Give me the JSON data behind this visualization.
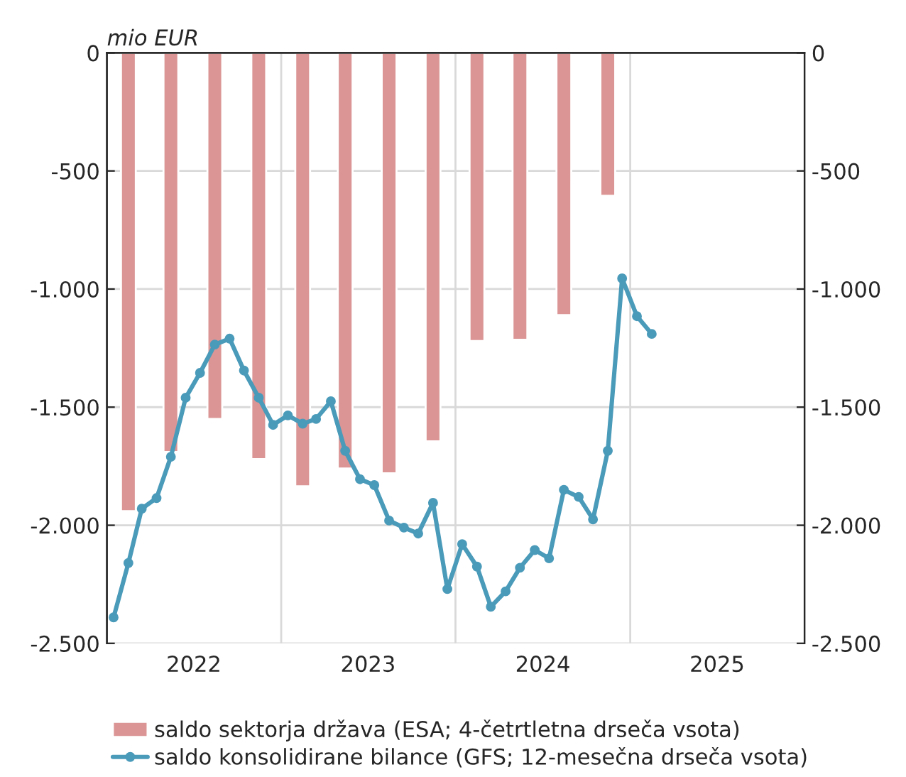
{
  "chart_data": {
    "type": "bar",
    "ylabel": "mio EUR",
    "series": [
      {
        "name": "saldo sektorja država (ESA; 4-četrtletna drseča vsota)",
        "color": "#db9595",
        "x": [
          "2022-02-15",
          "2022-05-15",
          "2022-08-15",
          "2022-11-15",
          "2023-02-15",
          "2023-05-15",
          "2023-08-15",
          "2023-11-15",
          "2024-02-15",
          "2024-05-15",
          "2024-08-15",
          "2024-11-15"
        ],
        "values": [
          -1940,
          -1690,
          -1550,
          -1720,
          -1835,
          -1760,
          -1780,
          -1645,
          -1220,
          -1215,
          -1110,
          -605
        ]
      },
      {
        "name": "saldo konsolidirane bilance (GFS; 12-mesečna drseča vsota)",
        "type": "line",
        "color": "#4a9aba",
        "marker": "circle",
        "line_style": "solid",
        "x": [
          "2022-01-15",
          "2022-02-15",
          "2022-03-15",
          "2022-04-15",
          "2022-05-15",
          "2022-06-15",
          "2022-07-15",
          "2022-08-15",
          "2022-09-15",
          "2022-10-15",
          "2022-11-15",
          "2022-12-15",
          "2023-01-15",
          "2023-02-15",
          "2023-03-15",
          "2023-04-15",
          "2023-05-15",
          "2023-06-15",
          "2023-07-15",
          "2023-08-15",
          "2023-09-15",
          "2023-10-15",
          "2023-11-15",
          "2023-12-15",
          "2024-01-15",
          "2024-02-15",
          "2024-03-15",
          "2024-04-15",
          "2024-05-15",
          "2024-06-15",
          "2024-07-15",
          "2024-08-15",
          "2024-09-15",
          "2024-10-15",
          "2024-11-15",
          "2024-12-15",
          "2025-01-15",
          "2025-02-15"
        ],
        "values": [
          -2390,
          -2160,
          -1930,
          -1885,
          -1710,
          -1460,
          -1355,
          -1235,
          -1210,
          -1345,
          -1460,
          -1575,
          -1535,
          -1570,
          -1550,
          -1475,
          -1685,
          -1805,
          -1830,
          -1980,
          -2010,
          -2035,
          -1905,
          -2270,
          -2080,
          -2175,
          -2345,
          -2280,
          -2180,
          -2105,
          -2140,
          -1850,
          -1880,
          -1975,
          -1685,
          -955,
          -1115,
          -1190
        ]
      }
    ],
    "xlim": [
      "2022-01-01",
      "2026-01-01"
    ],
    "xticks": [
      {
        "value": "2022-01-01",
        "label": null
      },
      {
        "value": "2022-07-02",
        "label": "2022"
      },
      {
        "value": "2023-01-01",
        "label": null
      },
      {
        "value": "2023-07-02",
        "label": "2023"
      },
      {
        "value": "2024-01-01",
        "label": null
      },
      {
        "value": "2024-07-02",
        "label": "2024"
      },
      {
        "value": "2025-01-01",
        "label": null
      },
      {
        "value": "2025-07-02",
        "label": "2025"
      },
      {
        "value": "2026-01-01",
        "label": null
      }
    ],
    "ylim": [
      -2500,
      0
    ],
    "yticks": [
      0,
      -500,
      {
        "value": -1000,
        "label": "-1.000"
      },
      {
        "value": -1500,
        "label": "-1.500"
      },
      {
        "value": -2000,
        "label": "-2.000"
      },
      {
        "value": -2500,
        "label": "-2.500"
      }
    ],
    "y2lim": [
      -2500,
      0
    ],
    "y2ticks": [
      0,
      -500,
      {
        "value": -1000,
        "label": "-1.000"
      },
      {
        "value": -1500,
        "label": "-1.500"
      },
      {
        "value": -2000,
        "label": "-2.000"
      },
      {
        "value": -2500,
        "label": "-2.500"
      }
    ],
    "grid": true,
    "legend": "bottom"
  }
}
